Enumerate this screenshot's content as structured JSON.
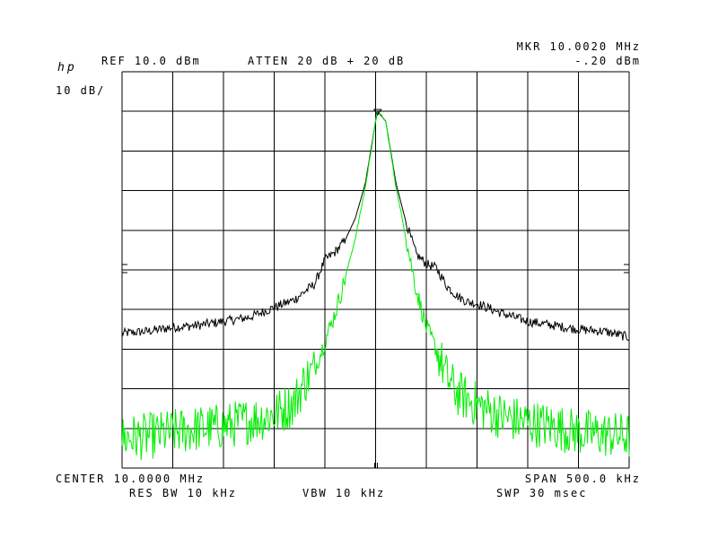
{
  "header": {
    "logo": "hp",
    "ref_level": "REF 10.0 dBm",
    "attenuation": "ATTEN 20 dB + 20 dB",
    "marker_freq": "MKR 10.0020 MHz",
    "marker_level": "-.20 dBm",
    "scale": "10 dB/"
  },
  "footer": {
    "center": "CENTER 10.0000 MHz",
    "span": "SPAN 500.0 kHz",
    "rbw": "RES BW 10 kHz",
    "vbw": "VBW 10 kHz",
    "sweep": "SWP 30 msec"
  },
  "colors": {
    "trace_a": "#000000",
    "trace_b": "#00ee00",
    "grid": "#000000"
  },
  "chart_data": {
    "type": "line",
    "title": "",
    "xlabel": "",
    "ylabel": "",
    "x_unit": "MHz",
    "y_unit": "dBm",
    "xlim": [
      9.75,
      10.25
    ],
    "ylim": [
      -90,
      10
    ],
    "grid": true,
    "grid_divisions": {
      "x": 10,
      "y": 10
    },
    "legend": "none",
    "marker": {
      "x": 10.002,
      "y": -0.2
    },
    "series": [
      {
        "color": "#000000",
        "x": [
          9.75,
          9.775,
          9.8,
          9.825,
          9.85,
          9.875,
          9.9,
          9.91,
          9.92,
          9.93,
          9.94,
          9.95,
          9.96,
          9.97,
          9.98,
          9.99,
          10.0,
          10.002,
          10.01,
          10.02,
          10.03,
          10.04,
          10.05,
          10.06,
          10.07,
          10.08,
          10.09,
          10.1,
          10.125,
          10.15,
          10.175,
          10.2,
          10.225,
          10.25
        ],
        "y": [
          -56,
          -55.5,
          -54.5,
          -54,
          -53,
          -52,
          -49.5,
          -48.5,
          -47.5,
          -45.5,
          -43.5,
          -37.5,
          -35.5,
          -32.5,
          -27,
          -18,
          -2.5,
          0,
          -2.5,
          -18,
          -28,
          -36,
          -38.5,
          -39.5,
          -44,
          -46.5,
          -48,
          -48.5,
          -51,
          -53,
          -54,
          -55,
          -55.5,
          -57
        ]
      },
      {
        "color": "#00ee00",
        "x": [
          9.75,
          9.775,
          9.8,
          9.825,
          9.85,
          9.875,
          9.9,
          9.91,
          9.92,
          9.93,
          9.94,
          9.95,
          9.96,
          9.97,
          9.98,
          9.99,
          10.0,
          10.002,
          10.01,
          10.02,
          10.03,
          10.04,
          10.05,
          10.06,
          10.07,
          10.08,
          10.09,
          10.1,
          10.125,
          10.15,
          10.175,
          10.2,
          10.225,
          10.25
        ],
        "y": [
          -82.5,
          -82,
          -81,
          -80,
          -79.5,
          -78,
          -76.5,
          -75,
          -73.5,
          -68,
          -65,
          -58,
          -51,
          -42,
          -32,
          -19,
          -2.5,
          0,
          -2.5,
          -19,
          -32,
          -45,
          -54.5,
          -60,
          -67,
          -71,
          -72.5,
          -74,
          -77,
          -78.5,
          -79.5,
          -81,
          -81.5,
          -82
        ]
      }
    ]
  }
}
